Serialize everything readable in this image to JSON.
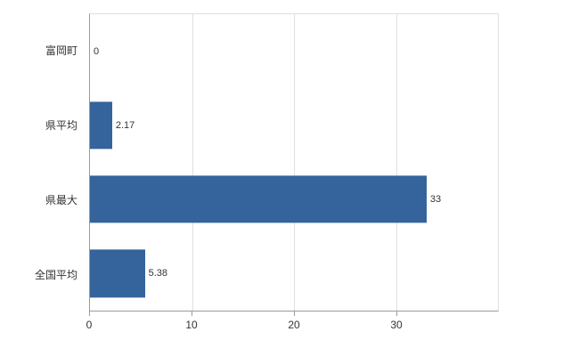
{
  "chart_data": {
    "type": "bar",
    "orientation": "horizontal",
    "title": "",
    "xlabel": "",
    "ylabel": "",
    "categories": [
      "富岡町",
      "県平均",
      "県最大",
      "全国平均"
    ],
    "values": [
      0,
      2.17,
      33,
      5.38
    ],
    "value_labels": [
      "0",
      "2.17",
      "33",
      "5.38"
    ],
    "xlim": [
      0,
      40
    ],
    "x_ticks": [
      0,
      10,
      20,
      30
    ],
    "grid": true,
    "legend": "none"
  },
  "colors": {
    "bar": "#35639B",
    "grid": "#e0e0e0",
    "axis": "#9b9b9b",
    "text": "#333333",
    "background": "#ffffff"
  }
}
